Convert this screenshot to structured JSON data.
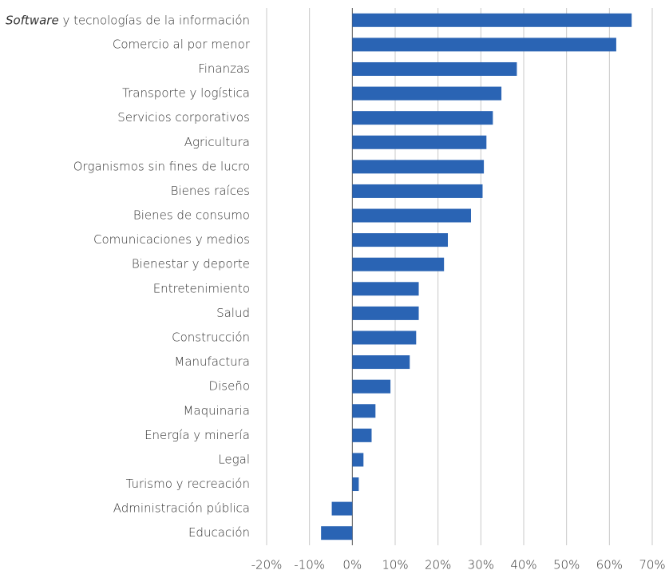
{
  "chart_data": {
    "type": "barh",
    "categories": [
      "Software y tecnologías de la información",
      "Comercio al por menor",
      "Finanzas",
      "Transporte y logística",
      "Servicios corporativos",
      "Agricultura",
      "Organismos sin fines de lucro",
      "Bienes raíces",
      "Bienes de consumo",
      "Comunicaciones y medios",
      "Bienestar y deporte",
      "Entretenimiento",
      "Salud",
      "Construcción",
      "Manufactura",
      "Diseño",
      "Maquinaria",
      "Energía y minería",
      "Legal",
      "Turismo y recreación",
      "Administración pública",
      "Educación"
    ],
    "values": [
      65.2,
      61.6,
      38.4,
      34.8,
      32.8,
      31.3,
      30.7,
      30.4,
      27.7,
      22.3,
      21.4,
      15.5,
      15.5,
      14.9,
      13.4,
      8.9,
      5.4,
      4.5,
      2.6,
      1.5,
      -4.8,
      -7.3
    ],
    "color": "#2a64b4",
    "xlim": [
      -20,
      70
    ],
    "xticks": [
      {
        "value": -20,
        "label": "-20%"
      },
      {
        "value": -10,
        "label": "-10%"
      },
      {
        "value": 0,
        "label": "0%"
      },
      {
        "value": 10,
        "label": "10%"
      },
      {
        "value": 20,
        "label": "20%"
      },
      {
        "value": 30,
        "label": "30%"
      },
      {
        "value": 40,
        "label": "40%"
      },
      {
        "value": 50,
        "label": "50%"
      },
      {
        "value": 60,
        "label": "60%"
      },
      {
        "value": 70,
        "label": "70%"
      }
    ],
    "grid": true
  }
}
